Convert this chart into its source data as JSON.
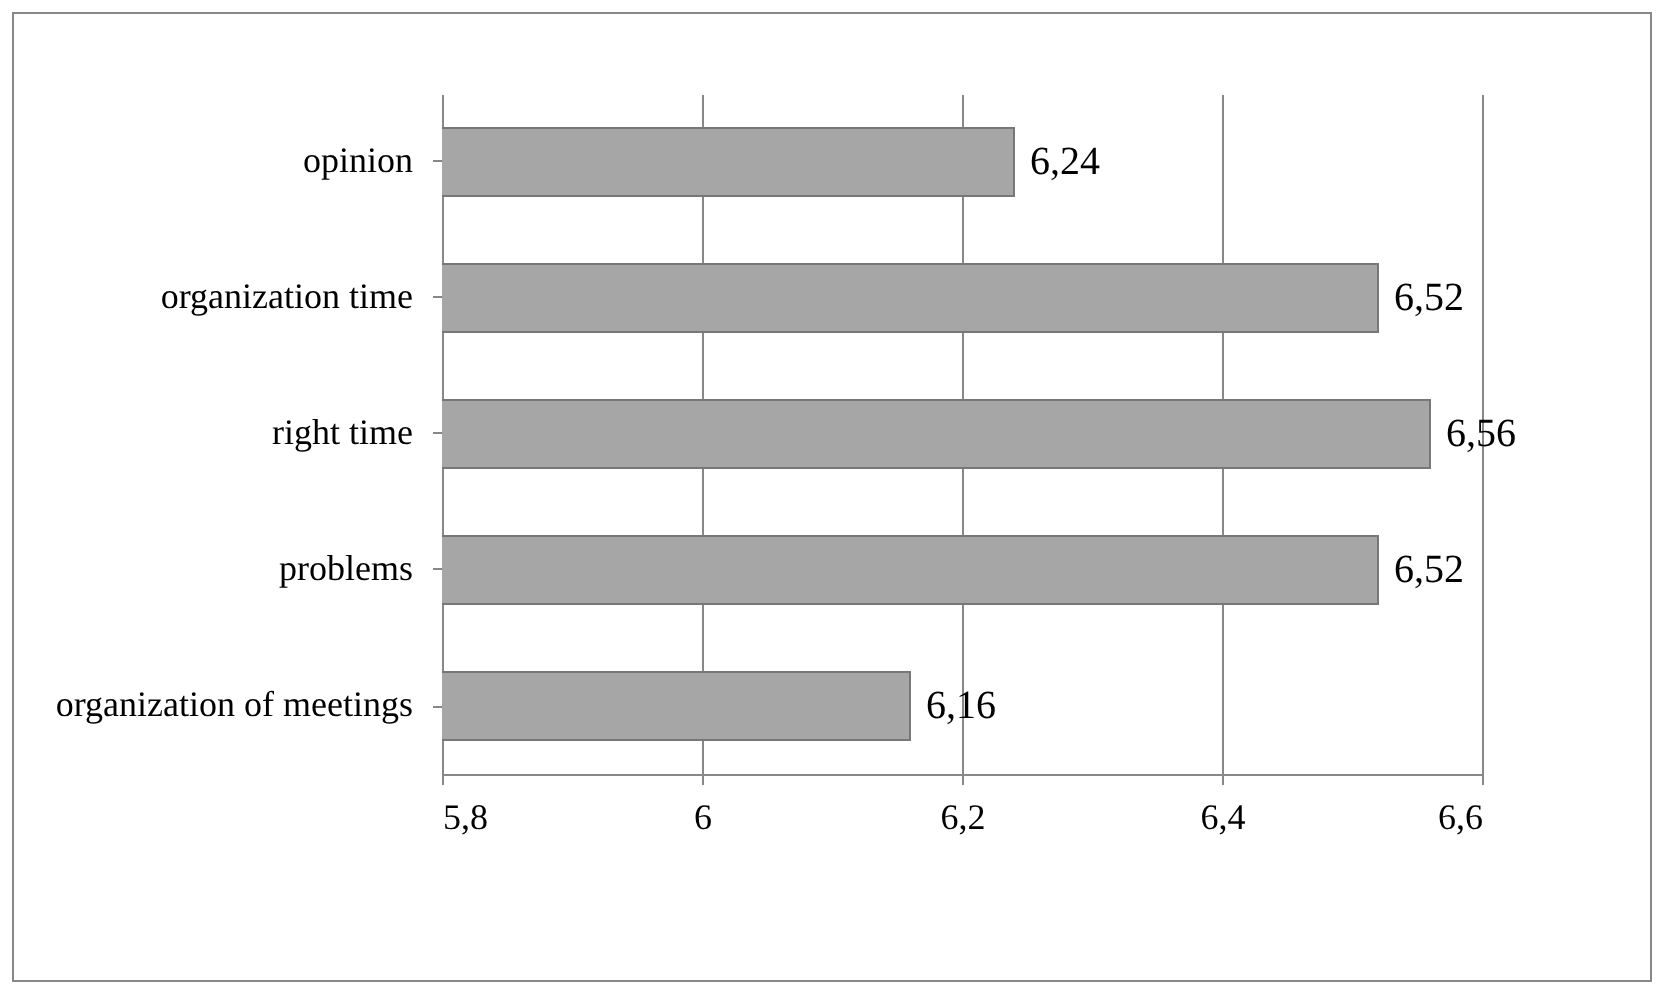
{
  "chart_data": {
    "type": "bar",
    "orientation": "horizontal",
    "categories": [
      "opinion",
      "organization time",
      "right time",
      "problems",
      "organization of meetings"
    ],
    "values": [
      6.24,
      6.52,
      6.56,
      6.52,
      6.16
    ],
    "value_labels": [
      "6,24",
      "6,52",
      "6,56",
      "6,52",
      "6,16"
    ],
    "color": "#a6a6a6",
    "xlim": [
      5.8,
      6.6
    ],
    "xticks": [
      {
        "value": 5.8,
        "label": "5,8"
      },
      {
        "value": 6,
        "label": "6"
      },
      {
        "value": 6.2,
        "label": "6,2"
      },
      {
        "value": 6.4,
        "label": "6,4"
      },
      {
        "value": 6.6,
        "label": "6,6"
      }
    ],
    "grid": "x"
  }
}
